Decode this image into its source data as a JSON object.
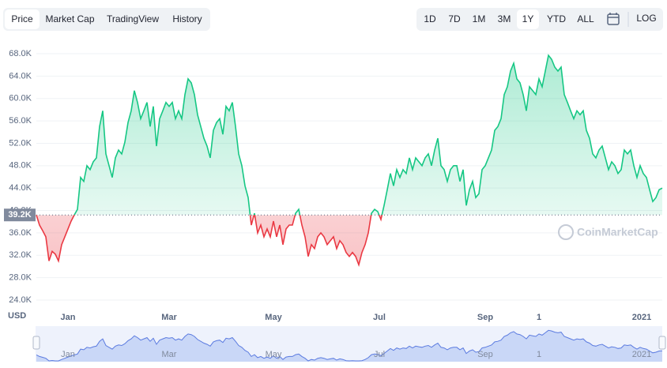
{
  "ui": {
    "tabs": [
      "Price",
      "Market Cap",
      "TradingView",
      "History"
    ],
    "selected_tab": 0,
    "ranges": [
      "1D",
      "7D",
      "1M",
      "3M",
      "1Y",
      "YTD",
      "ALL"
    ],
    "selected_range": 4,
    "log": "LOG"
  },
  "chart_data": {
    "type": "area",
    "currency": "USD",
    "watermark": "CoinMarketCap",
    "up_color": "#16c784",
    "down_color": "#ea3943",
    "baseline": {
      "value": 39.2,
      "label": "39.2K"
    },
    "values": [
      39.2,
      37.4,
      36.4,
      35.3,
      31.0,
      32.7,
      32.2,
      31.0,
      33.9,
      35.3,
      36.7,
      38.1,
      39.2,
      40.2,
      45.9,
      45.2,
      48.0,
      47.3,
      48.7,
      49.4,
      55.0,
      57.8,
      50.1,
      48.0,
      45.9,
      49.4,
      50.8,
      50.1,
      52.2,
      55.7,
      57.8,
      61.4,
      59.3,
      56.4,
      57.8,
      59.3,
      55.0,
      58.6,
      51.5,
      56.4,
      57.8,
      59.3,
      58.6,
      59.3,
      56.4,
      57.8,
      56.4,
      60.7,
      63.5,
      62.8,
      60.7,
      57.1,
      55.0,
      52.9,
      51.5,
      49.4,
      54.3,
      55.7,
      56.4,
      53.6,
      58.6,
      57.8,
      59.3,
      55.0,
      50.1,
      48.0,
      44.4,
      42.3,
      37.4,
      39.5,
      36.0,
      37.4,
      35.3,
      36.7,
      35.3,
      38.1,
      35.3,
      37.4,
      33.9,
      36.7,
      37.4,
      37.4,
      39.5,
      40.2,
      37.4,
      35.3,
      31.8,
      33.9,
      33.2,
      35.3,
      36.0,
      35.3,
      33.9,
      34.6,
      35.3,
      33.2,
      34.6,
      33.9,
      32.5,
      31.8,
      32.5,
      31.8,
      30.3,
      32.5,
      33.9,
      36.0,
      39.5,
      40.2,
      39.8,
      38.4,
      40.9,
      43.7,
      46.6,
      44.4,
      47.3,
      45.9,
      47.3,
      46.6,
      49.4,
      47.3,
      49.4,
      48.7,
      48.0,
      49.4,
      50.1,
      48.0,
      50.8,
      52.9,
      48.0,
      47.3,
      45.2,
      47.3,
      48.0,
      48.0,
      45.2,
      47.3,
      40.9,
      43.7,
      45.2,
      42.3,
      43.0,
      47.3,
      48.0,
      49.4,
      50.8,
      54.3,
      55.0,
      56.4,
      60.7,
      62.1,
      64.9,
      66.3,
      63.5,
      62.8,
      60.7,
      57.8,
      62.1,
      61.4,
      60.7,
      63.5,
      62.1,
      64.9,
      67.7,
      67.0,
      65.6,
      64.9,
      65.6,
      60.7,
      59.3,
      57.8,
      56.4,
      57.8,
      57.1,
      57.8,
      54.3,
      52.9,
      50.1,
      49.4,
      50.8,
      51.5,
      49.4,
      47.3,
      48.7,
      48.0,
      46.6,
      47.3,
      50.8,
      50.1,
      50.8,
      48.0,
      45.9,
      48.0,
      46.6,
      45.9,
      43.7,
      41.6,
      42.3,
      43.7,
      44.0
    ],
    "xlim": [
      0,
      198
    ],
    "xticks": [
      {
        "value": 10,
        "label": "Jan"
      },
      {
        "value": 42,
        "label": "Mar"
      },
      {
        "value": 75,
        "label": "May"
      },
      {
        "value": 108.5,
        "label": "Jul"
      },
      {
        "value": 142,
        "label": "Sep"
      },
      {
        "value": 159,
        "label": "1"
      },
      {
        "value": 191.5,
        "label": "2021"
      }
    ],
    "ylim": [
      24,
      68
    ],
    "yticks": [
      {
        "value": 24,
        "label": "24.0K"
      },
      {
        "value": 28,
        "label": "28.0K"
      },
      {
        "value": 32,
        "label": "32.0K"
      },
      {
        "value": 36,
        "label": "36.0K"
      },
      {
        "value": 40,
        "label": "40.0K"
      },
      {
        "value": 44,
        "label": "44.0K"
      },
      {
        "value": 48,
        "label": "48.0K"
      },
      {
        "value": 52,
        "label": "52.0K"
      },
      {
        "value": 56,
        "label": "56.0K"
      },
      {
        "value": 60,
        "label": "60.0K"
      },
      {
        "value": 64,
        "label": "64.0K"
      },
      {
        "value": 68,
        "label": "68.0K"
      }
    ],
    "grid": true
  }
}
